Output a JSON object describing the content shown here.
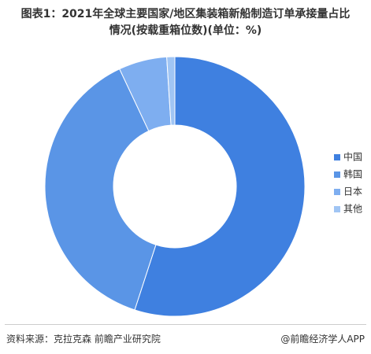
{
  "chart_data": {
    "type": "pie",
    "title": "图表1：2021年全球主要国家/地区集装箱新船制造订单承接量占比情况(按载重箱位数)(单位：%)",
    "categories": [
      "中国",
      "韩国",
      "日本",
      "其他"
    ],
    "values": [
      55,
      38,
      6,
      1
    ],
    "colors": [
      "#3f80e0",
      "#5a95e6",
      "#7eaef0",
      "#a0c5f4"
    ],
    "source": "资料来源：克拉克森 前瞻产业研究院",
    "credit": "@前瞻经济学人APP"
  }
}
